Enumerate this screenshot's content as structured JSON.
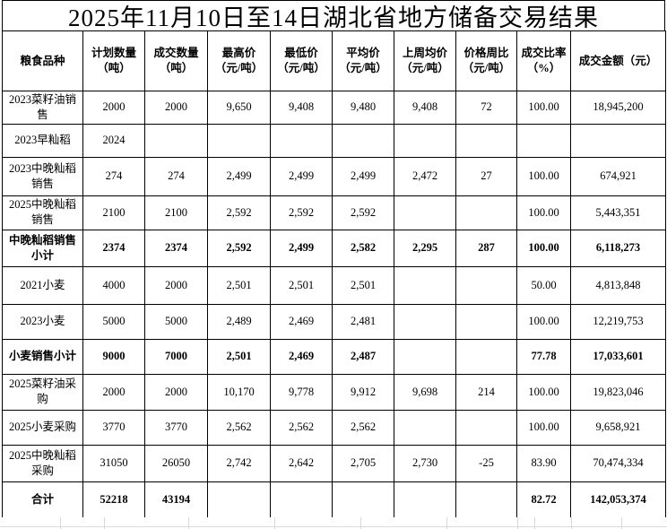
{
  "title": "2025年11月10日至14日湖北省地方储备交易结果",
  "table": {
    "headers": [
      {
        "lines": [
          "粮食品种"
        ]
      },
      {
        "lines": [
          "计划数量",
          "（吨）"
        ]
      },
      {
        "lines": [
          "成交数量",
          "（吨）"
        ]
      },
      {
        "lines": [
          "最高价",
          "（元/吨）"
        ]
      },
      {
        "lines": [
          "最低价",
          "（元/吨）"
        ]
      },
      {
        "lines": [
          "平均价",
          "（元/吨）"
        ]
      },
      {
        "lines": [
          "上周均价",
          "（元/吨）"
        ]
      },
      {
        "lines": [
          "价格周比",
          "（元/吨）"
        ]
      },
      {
        "lines": [
          "成交比率",
          "（%）"
        ]
      },
      {
        "lines": [
          "成交金额（元）"
        ]
      }
    ],
    "rows": [
      {
        "bold": false,
        "cells": [
          "2023菜籽油销售",
          "2000",
          "2000",
          "9,650",
          "9,408",
          "9,480",
          "9,408",
          "72",
          "100.00",
          "18,945,200"
        ]
      },
      {
        "bold": false,
        "cells": [
          "2023早籼稻",
          "2024",
          "",
          "",
          "",
          "",
          "",
          "",
          "",
          ""
        ]
      },
      {
        "bold": false,
        "cells": [
          "2023中晚籼稻销售",
          "274",
          "274",
          "2,499",
          "2,499",
          "2,499",
          "2,472",
          "27",
          "100.00",
          "674,921"
        ]
      },
      {
        "bold": false,
        "cells": [
          "2025中晚籼稻销售",
          "2100",
          "2100",
          "2,592",
          "2,592",
          "2,592",
          "",
          "",
          "100.00",
          "5,443,351"
        ]
      },
      {
        "bold": true,
        "cells": [
          "中晚籼稻销售小计",
          "2374",
          "2374",
          "2,592",
          "2,499",
          "2,582",
          "2,295",
          "287",
          "100.00",
          "6,118,273"
        ]
      },
      {
        "bold": false,
        "cells": [
          "2021小麦",
          "4000",
          "2000",
          "2,501",
          "2,501",
          "2,501",
          "",
          "",
          "50.00",
          "4,813,848"
        ]
      },
      {
        "bold": false,
        "cells": [
          "2023小麦",
          "5000",
          "5000",
          "2,489",
          "2,469",
          "2,481",
          "",
          "",
          "100.00",
          "12,219,753"
        ]
      },
      {
        "bold": true,
        "cells": [
          "小麦销售小计",
          "9000",
          "7000",
          "2,501",
          "2,469",
          "2,487",
          "",
          "",
          "77.78",
          "17,033,601"
        ]
      },
      {
        "bold": false,
        "cells": [
          "2025菜籽油采购",
          "2000",
          "2000",
          "10,170",
          "9,778",
          "9,912",
          "9,698",
          "214",
          "100.00",
          "19,823,046"
        ]
      },
      {
        "bold": false,
        "cells": [
          "2025小麦采购",
          "3770",
          "3770",
          "2,562",
          "2,562",
          "2,562",
          "",
          "",
          "100.00",
          "9,658,921"
        ]
      },
      {
        "bold": false,
        "cells": [
          "2025中晚籼稻采购",
          "31050",
          "26050",
          "2,742",
          "2,642",
          "2,705",
          "2,730",
          "-25",
          "83.90",
          "70,474,334"
        ]
      },
      {
        "bold": true,
        "cells": [
          "合计",
          "52218",
          "43194",
          "",
          "",
          "",
          "",
          "",
          "82.72",
          "142,053,374"
        ]
      }
    ]
  }
}
